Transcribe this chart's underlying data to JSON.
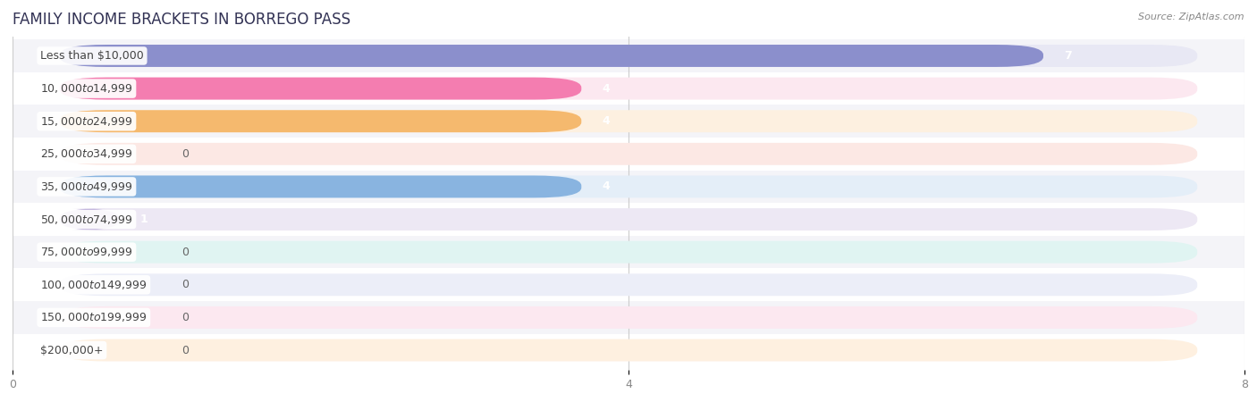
{
  "title": "FAMILY INCOME BRACKETS IN BORREGO PASS",
  "source": "Source: ZipAtlas.com",
  "categories": [
    "Less than $10,000",
    "$10,000 to $14,999",
    "$15,000 to $24,999",
    "$25,000 to $34,999",
    "$35,000 to $49,999",
    "$50,000 to $74,999",
    "$75,000 to $99,999",
    "$100,000 to $149,999",
    "$150,000 to $199,999",
    "$200,000+"
  ],
  "values": [
    7,
    4,
    4,
    0,
    4,
    1,
    0,
    0,
    0,
    0
  ],
  "bar_colors": [
    "#8b8fcc",
    "#f47db0",
    "#f5b96e",
    "#f0a89a",
    "#89b4e0",
    "#b8a8d8",
    "#5ec4bb",
    "#aab4e4",
    "#f59ab4",
    "#f5c49a"
  ],
  "bar_bg_colors": [
    "#e8e8f4",
    "#fce8f0",
    "#fdf0e0",
    "#fce8e4",
    "#e4eef8",
    "#ede8f4",
    "#e0f4f2",
    "#eceef8",
    "#fce8f0",
    "#fef0e0"
  ],
  "row_alternating": [
    "#f4f4f8",
    "#ffffff"
  ],
  "xlim": [
    0,
    8
  ],
  "xticks": [
    0,
    4,
    8
  ],
  "background_color": "#ffffff",
  "label_fontsize": 9,
  "value_fontsize": 9,
  "title_fontsize": 12,
  "source_fontsize": 8
}
